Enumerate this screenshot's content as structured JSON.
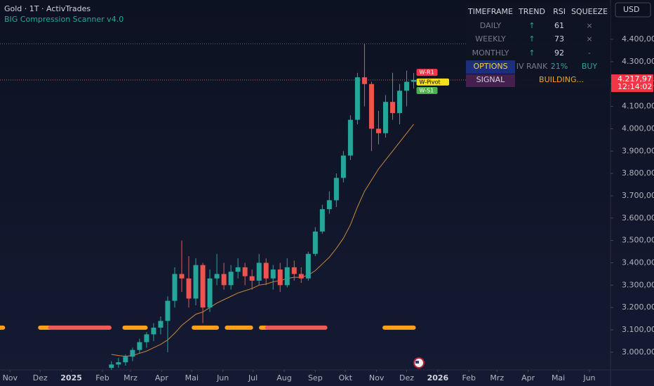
{
  "chart_data": {
    "type": "candlestick",
    "title": "Gold · 1T · ActivTrades",
    "subtitle": "BIG Compression Scanner v4.0",
    "xlim": [
      -10,
      598
    ],
    "xticks": [
      {
        "value": 0,
        "label": "Nov"
      },
      {
        "value": 30,
        "label": "Dez"
      },
      {
        "value": 61,
        "label": "2025"
      },
      {
        "value": 92,
        "label": "Feb"
      },
      {
        "value": 120,
        "label": "Mrz"
      },
      {
        "value": 151,
        "label": "Apr"
      },
      {
        "value": 181,
        "label": "Mai"
      },
      {
        "value": 212,
        "label": "Jun"
      },
      {
        "value": 242,
        "label": "Jul"
      },
      {
        "value": 273,
        "label": "Aug"
      },
      {
        "value": 304,
        "label": "Sep"
      },
      {
        "value": 334,
        "label": "Okt"
      },
      {
        "value": 365,
        "label": "Nov"
      },
      {
        "value": 395,
        "label": "Dez"
      },
      {
        "value": 426,
        "label": "2026"
      },
      {
        "value": 457,
        "label": "Feb"
      },
      {
        "value": 485,
        "label": "Mrz"
      },
      {
        "value": 516,
        "label": "Apr"
      },
      {
        "value": 546,
        "label": "Mai"
      },
      {
        "value": 577,
        "label": "Jun"
      }
    ],
    "ylim": [
      2921,
      4576
    ],
    "yticks": [
      {
        "value": 3000,
        "label": "3.000,00"
      },
      {
        "value": 3100,
        "label": "3.100,00"
      },
      {
        "value": 3200,
        "label": "3.200,00"
      },
      {
        "value": 3300,
        "label": "3.300,00"
      },
      {
        "value": 3400,
        "label": "3.400,00"
      },
      {
        "value": 3500,
        "label": "3.500,00"
      },
      {
        "value": 3600,
        "label": "3.600,00"
      },
      {
        "value": 3700,
        "label": "3.700,00"
      },
      {
        "value": 3800,
        "label": "3.800,00"
      },
      {
        "value": 3900,
        "label": "3.900,00"
      },
      {
        "value": 4000,
        "label": "4.000,00"
      },
      {
        "value": 4100,
        "label": "4.100,00"
      },
      {
        "value": 4200,
        "label": "4.200,00"
      },
      {
        "value": 4300,
        "label": "4.300,00"
      },
      {
        "value": 4400,
        "label": "4.400,00"
      }
    ],
    "up_color": "#26a69a",
    "down_color": "#ef5350",
    "x": [
      101,
      108,
      115,
      122,
      129,
      136,
      143,
      150,
      157,
      164,
      171,
      178,
      185,
      192,
      199,
      206,
      213,
      220,
      227,
      234,
      241,
      248,
      255,
      262,
      269,
      276,
      283,
      290,
      297,
      304,
      311,
      318,
      325,
      332,
      339,
      346,
      353,
      360,
      367,
      374,
      381,
      388,
      395,
      402
    ],
    "open": [
      2930,
      2945,
      2955,
      2980,
      3010,
      3045,
      3080,
      3110,
      3140,
      3230,
      3350,
      3330,
      3240,
      3390,
      3200,
      3330,
      3350,
      3300,
      3360,
      3380,
      3340,
      3320,
      3400,
      3330,
      3370,
      3300,
      3380,
      3350,
      3330,
      3440,
      3540,
      3640,
      3680,
      3780,
      3880,
      4040,
      4230,
      4200,
      4000,
      3980,
      4120,
      4070,
      4170,
      4210
    ],
    "high": [
      2960,
      2975,
      2990,
      3020,
      3060,
      3090,
      3130,
      3160,
      3250,
      3380,
      3500,
      3430,
      3420,
      3400,
      3370,
      3440,
      3400,
      3390,
      3420,
      3400,
      3370,
      3440,
      3420,
      3390,
      3400,
      3420,
      3410,
      3380,
      3450,
      3560,
      3660,
      3720,
      3800,
      3900,
      4060,
      4250,
      4380,
      4210,
      4080,
      4150,
      4250,
      4200,
      4260,
      4250
    ],
    "low": [
      2915,
      2930,
      2940,
      2960,
      2995,
      3020,
      3050,
      3080,
      3000,
      3200,
      3270,
      3200,
      3210,
      3130,
      3180,
      3300,
      3280,
      3280,
      3330,
      3300,
      3280,
      3300,
      3300,
      3280,
      3270,
      3290,
      3320,
      3310,
      3320,
      3430,
      3530,
      3620,
      3650,
      3760,
      3860,
      4020,
      4100,
      3900,
      3930,
      3960,
      4040,
      4020,
      4100,
      4180
    ],
    "close": [
      2945,
      2955,
      2980,
      3010,
      3045,
      3080,
      3110,
      3140,
      3230,
      3350,
      3330,
      3240,
      3390,
      3200,
      3330,
      3350,
      3300,
      3360,
      3380,
      3340,
      3320,
      3400,
      3330,
      3370,
      3300,
      3380,
      3350,
      3330,
      3440,
      3540,
      3640,
      3680,
      3780,
      3880,
      4040,
      4230,
      4200,
      4000,
      3980,
      4120,
      4070,
      4170,
      4210,
      4218
    ],
    "ma": {
      "color": "#f7a440",
      "values": [
        2990,
        2985,
        2982,
        2985,
        2995,
        3005,
        3020,
        3035,
        3055,
        3085,
        3120,
        3145,
        3170,
        3180,
        3200,
        3220,
        3235,
        3250,
        3265,
        3275,
        3285,
        3300,
        3305,
        3315,
        3320,
        3330,
        3335,
        3335,
        3345,
        3365,
        3395,
        3425,
        3465,
        3510,
        3570,
        3650,
        3720,
        3770,
        3820,
        3860,
        3900,
        3940,
        3980,
        4020
      ]
    },
    "squeeze": [
      {
        "x": [
          -10,
          -7
        ],
        "color": "#ff9f1a"
      },
      {
        "x": [
          30,
          40
        ],
        "color": "#ff9f1a"
      },
      {
        "x": [
          40,
          99
        ],
        "color": "#f05a5a"
      },
      {
        "x": [
          114,
          135
        ],
        "color": "#ff9f1a"
      },
      {
        "x": [
          183,
          206
        ],
        "color": "#ff9f1a"
      },
      {
        "x": [
          216,
          240
        ],
        "color": "#ff9f1a"
      },
      {
        "x": [
          250,
          256
        ],
        "color": "#ff9f1a"
      },
      {
        "x": [
          256,
          314
        ],
        "color": "#f05a5a"
      },
      {
        "x": [
          373,
          402
        ],
        "color": "#ff9f1a"
      }
    ],
    "squeeze_level": 3110,
    "pivots": [
      {
        "label": "W-R1",
        "value": 4252,
        "color": "#f23645"
      },
      {
        "label": "W-Pivot",
        "value": 4209,
        "color": "#f5e01b"
      },
      {
        "label": "W-S1",
        "value": 4171,
        "color": "#4caf50"
      }
    ],
    "current_price": {
      "value": 4217.97,
      "label": "4.217,97"
    },
    "countdown": "12:14:02"
  },
  "currency": "USD",
  "table": {
    "header": [
      "TIMEFRAME",
      "TREND",
      "RSI",
      "SQUEEZE"
    ],
    "rows": [
      [
        "DAILY",
        "↑",
        "61",
        "×"
      ],
      [
        "WEEKLY",
        "↑",
        "73",
        "×"
      ],
      [
        "MONTHLY",
        "↑",
        "92",
        "-"
      ],
      [
        "OPTIONS",
        "IV RANK",
        "21%",
        "BUY"
      ],
      [
        "SIGNAL",
        "BUILDING..."
      ]
    ]
  }
}
